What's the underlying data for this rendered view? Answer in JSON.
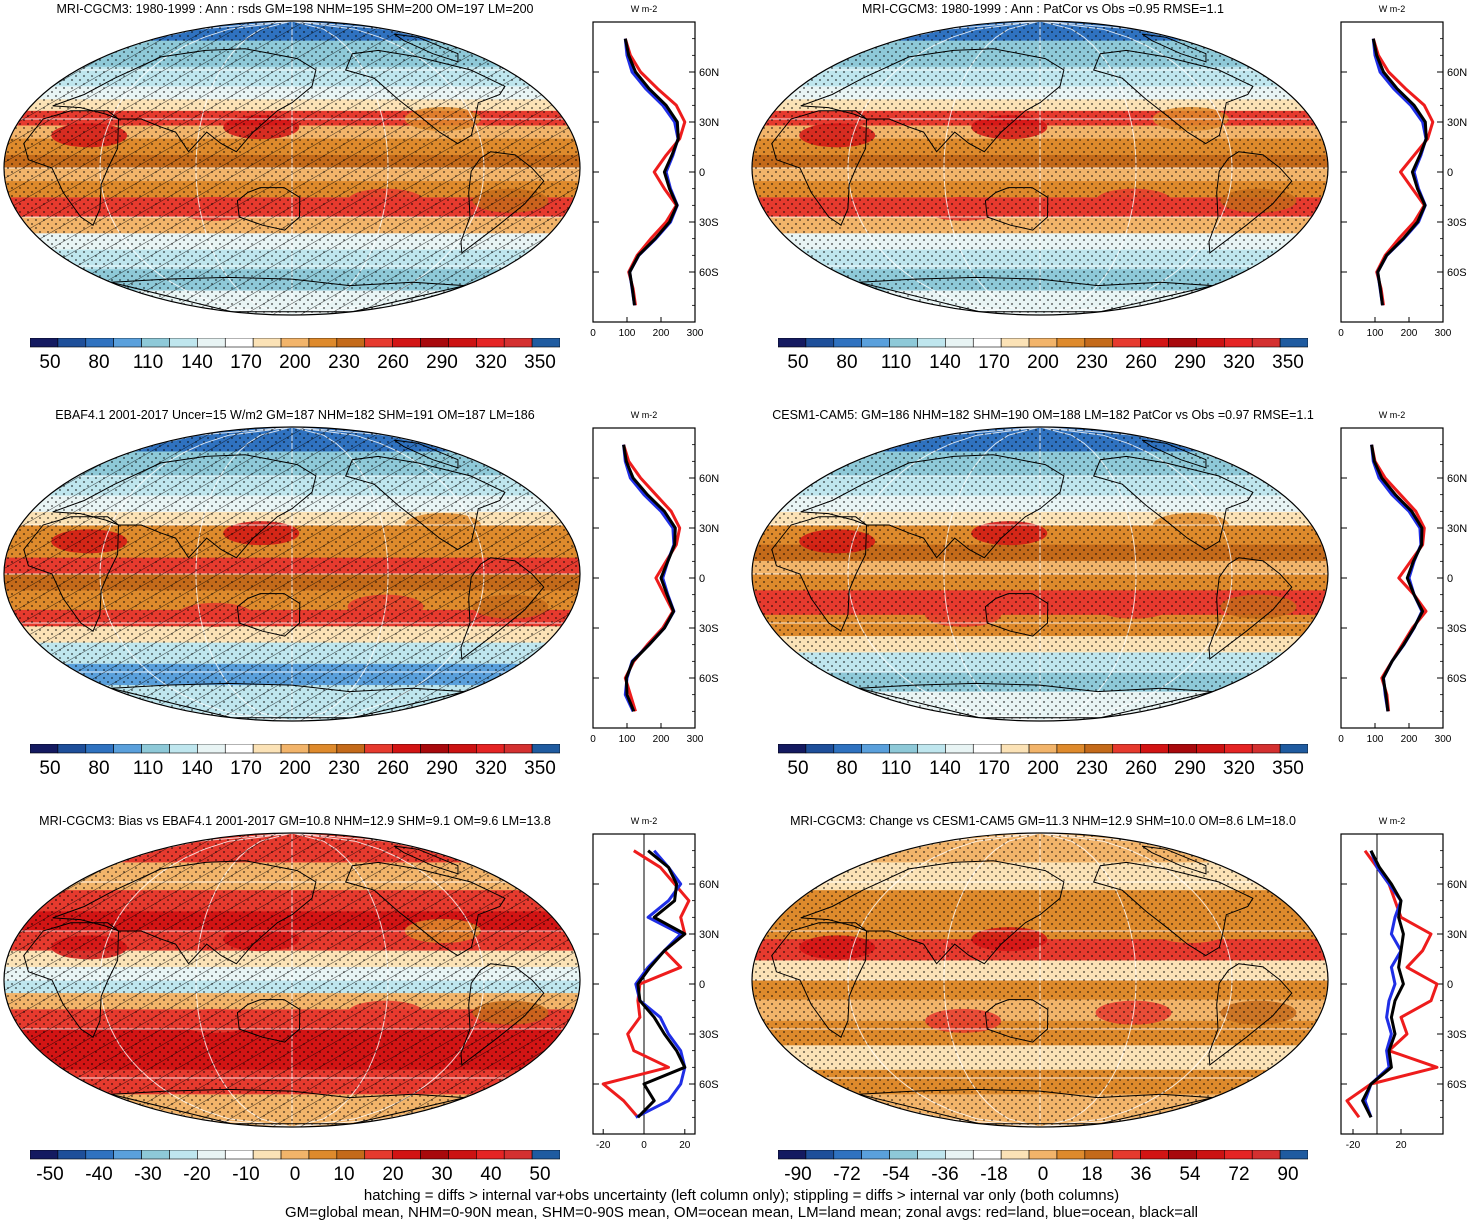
{
  "chart_data": [
    {
      "type": "heatmap",
      "title": "MRI-CGCM3: 1980-1999 : Ann : rsds GM=198 NHM=195 SHM=200 OM=197 LM=200",
      "colorbar": {
        "ticks": [
          "50",
          "80",
          "110",
          "140",
          "170",
          "200",
          "230",
          "260",
          "290",
          "320",
          "350"
        ],
        "palette": [
          "#141a60",
          "#1e4f9a",
          "#2f72c0",
          "#5aa0dc",
          "#8ec9d8",
          "#bfe6ee",
          "#e8f4f4",
          "#ffffff",
          "#fbe2b6",
          "#f2b46a",
          "#de8a2c",
          "#c46a1a",
          "#e63a2e",
          "#d21414",
          "#a8090c",
          "#cc1212",
          "#e52424",
          "#d43030",
          "#1f5ba0"
        ]
      },
      "field": {
        "kind": "rsds_mri",
        "hatching": true,
        "stippling": true
      },
      "zonal_profile": {
        "xlim": [
          0,
          300
        ],
        "xticks": [
          "0",
          "100",
          "200",
          "300"
        ],
        "unit": "W m-2",
        "ylabels": [
          "60N",
          "30N",
          "0",
          "30S",
          "60S"
        ],
        "lat": [
          -80,
          -70,
          -60,
          -50,
          -40,
          -30,
          -20,
          -10,
          0,
          10,
          20,
          30,
          40,
          50,
          60,
          70,
          80
        ],
        "series": [
          {
            "name": "land",
            "color": "#ee1c1c",
            "values": [
              125,
              118,
              105,
              130,
              170,
              215,
              245,
              210,
              180,
              215,
              255,
              270,
              245,
              190,
              140,
              110,
              95
            ]
          },
          {
            "name": "ocean",
            "color": "#1f2ee6",
            "values": [
              122,
              115,
              108,
              135,
              185,
              228,
              248,
              228,
              215,
              235,
              250,
              240,
              205,
              155,
              115,
              100,
              95
            ]
          },
          {
            "name": "all",
            "color": "#000000",
            "values": [
              122,
              116,
              108,
              134,
              183,
              225,
              247,
              225,
              210,
              232,
              251,
              248,
              215,
              165,
              125,
              105,
              95
            ]
          }
        ]
      }
    },
    {
      "type": "heatmap",
      "title": "MRI-CGCM3: 1980-1999 : Ann : PatCor vs Obs =0.95 RMSE=1.1",
      "colorbar": {
        "ticks": [
          "50",
          "80",
          "110",
          "140",
          "170",
          "200",
          "230",
          "260",
          "290",
          "320",
          "350"
        ],
        "palette": [
          "#141a60",
          "#1e4f9a",
          "#2f72c0",
          "#5aa0dc",
          "#8ec9d8",
          "#bfe6ee",
          "#e8f4f4",
          "#ffffff",
          "#fbe2b6",
          "#f2b46a",
          "#de8a2c",
          "#c46a1a",
          "#e63a2e",
          "#d21414",
          "#a8090c",
          "#cc1212",
          "#e52424",
          "#d43030",
          "#1f5ba0"
        ]
      },
      "field": {
        "kind": "rsds_mri",
        "hatching": false,
        "stippling": true
      },
      "zonal_profile": {
        "xlim": [
          0,
          300
        ],
        "xticks": [
          "0",
          "100",
          "200",
          "300"
        ],
        "unit": "W m-2",
        "ylabels": [
          "60N",
          "30N",
          "0",
          "30S",
          "60S"
        ],
        "lat": [
          -80,
          -70,
          -60,
          -50,
          -40,
          -30,
          -20,
          -10,
          0,
          10,
          20,
          30,
          40,
          50,
          60,
          70,
          80
        ],
        "series": [
          {
            "name": "land",
            "color": "#ee1c1c",
            "values": [
              125,
              118,
              105,
              130,
              170,
              215,
              245,
              210,
              175,
              215,
              255,
              270,
              245,
              190,
              140,
              110,
              95
            ]
          },
          {
            "name": "ocean",
            "color": "#1f2ee6",
            "values": [
              122,
              115,
              108,
              135,
              185,
              228,
              248,
              228,
              215,
              235,
              250,
              240,
              205,
              155,
              115,
              100,
              95
            ]
          },
          {
            "name": "all",
            "color": "#000000",
            "values": [
              122,
              116,
              108,
              134,
              183,
              225,
              247,
              225,
              210,
              232,
              251,
              248,
              215,
              165,
              125,
              105,
              95
            ]
          }
        ]
      }
    },
    {
      "type": "heatmap",
      "title": "EBAF4.1 2001-2017 Uncer=15 W/m2 GM=187 NHM=182 SHM=191 OM=187 LM=186",
      "colorbar": {
        "ticks": [
          "50",
          "80",
          "110",
          "140",
          "170",
          "200",
          "230",
          "260",
          "290",
          "320",
          "350"
        ],
        "palette": [
          "#141a60",
          "#1e4f9a",
          "#2f72c0",
          "#5aa0dc",
          "#8ec9d8",
          "#bfe6ee",
          "#e8f4f4",
          "#ffffff",
          "#fbe2b6",
          "#f2b46a",
          "#de8a2c",
          "#c46a1a",
          "#e63a2e",
          "#d21414",
          "#a8090c",
          "#cc1212",
          "#e52424",
          "#d43030",
          "#1f5ba0"
        ]
      },
      "field": {
        "kind": "rsds_obs",
        "hatching": true,
        "stippling": true
      },
      "zonal_profile": {
        "xlim": [
          0,
          300
        ],
        "xticks": [
          "0",
          "100",
          "200",
          "300"
        ],
        "unit": "W m-2",
        "ylabels": [
          "60N",
          "30N",
          "0",
          "30S",
          "60S"
        ],
        "lat": [
          -80,
          -70,
          -60,
          -50,
          -40,
          -30,
          -20,
          -10,
          0,
          10,
          20,
          30,
          40,
          50,
          60,
          70,
          80
        ],
        "series": [
          {
            "name": "land",
            "color": "#ee1c1c",
            "values": [
              125,
              110,
              95,
              120,
              160,
              205,
              235,
              210,
              185,
              215,
              245,
              255,
              230,
              185,
              140,
              105,
              90
            ]
          },
          {
            "name": "ocean",
            "color": "#1f2ee6",
            "values": [
              118,
              95,
              100,
              115,
              165,
              210,
              238,
              220,
              205,
              220,
              238,
              235,
              200,
              150,
              110,
              95,
              90
            ]
          },
          {
            "name": "all",
            "color": "#000000",
            "values": [
              120,
              100,
              98,
              117,
              165,
              210,
              237,
              218,
              200,
              220,
              240,
              242,
              210,
              160,
              118,
              98,
              90
            ]
          }
        ]
      }
    },
    {
      "type": "heatmap",
      "title": "CESM1-CAM5: GM=186 NHM=182 SHM=190 OM=188 LM=182 PatCor vs Obs =0.97 RMSE=1.1",
      "colorbar": {
        "ticks": [
          "50",
          "80",
          "110",
          "140",
          "170",
          "200",
          "230",
          "260",
          "290",
          "320",
          "350"
        ],
        "palette": [
          "#141a60",
          "#1e4f9a",
          "#2f72c0",
          "#5aa0dc",
          "#8ec9d8",
          "#bfe6ee",
          "#e8f4f4",
          "#ffffff",
          "#fbe2b6",
          "#f2b46a",
          "#de8a2c",
          "#c46a1a",
          "#e63a2e",
          "#d21414",
          "#a8090c",
          "#cc1212",
          "#e52424",
          "#d43030",
          "#1f5ba0"
        ]
      },
      "field": {
        "kind": "rsds_cesm",
        "hatching": false,
        "stippling": true
      },
      "zonal_profile": {
        "xlim": [
          0,
          300
        ],
        "xticks": [
          "0",
          "100",
          "200",
          "300"
        ],
        "unit": "W m-2",
        "ylabels": [
          "60N",
          "30N",
          "0",
          "30S",
          "60S"
        ],
        "lat": [
          -80,
          -70,
          -60,
          -50,
          -40,
          -30,
          -20,
          -10,
          0,
          10,
          20,
          30,
          40,
          50,
          60,
          70,
          80
        ],
        "series": [
          {
            "name": "land",
            "color": "#ee1c1c",
            "values": [
              140,
              135,
              120,
              150,
              180,
              210,
              250,
              215,
              170,
              205,
              240,
              245,
              220,
              175,
              130,
              100,
              90
            ]
          },
          {
            "name": "ocean",
            "color": "#1f2ee6",
            "values": [
              138,
              130,
              125,
              150,
              185,
              215,
              238,
              215,
              200,
              215,
              235,
              232,
              200,
              150,
              112,
              95,
              90
            ]
          },
          {
            "name": "all",
            "color": "#000000",
            "values": [
              138,
              132,
              124,
              150,
              184,
              214,
              240,
              215,
              195,
              213,
              237,
              238,
              208,
              160,
              120,
              98,
              90
            ]
          }
        ]
      }
    },
    {
      "type": "heatmap",
      "title": "MRI-CGCM3: Bias vs EBAF4.1 2001-2017 GM=10.8 NHM=12.9 SHM=9.1 OM=9.6 LM=13.8",
      "colorbar": {
        "ticks": [
          "-50",
          "-40",
          "-30",
          "-20",
          "-10",
          "0",
          "10",
          "20",
          "30",
          "40",
          "50"
        ],
        "palette": [
          "#141a60",
          "#1e4f9a",
          "#2f72c0",
          "#5aa0dc",
          "#8ec9d8",
          "#bfe6ee",
          "#e8f4f4",
          "#ffffff",
          "#fbe2b6",
          "#f2b46a",
          "#de8a2c",
          "#c46a1a",
          "#e63a2e",
          "#d21414",
          "#a8090c",
          "#cc1212",
          "#e52424",
          "#d43030",
          "#1f5ba0"
        ]
      },
      "field": {
        "kind": "bias",
        "hatching": true,
        "stippling": true
      },
      "zonal_profile": {
        "xlim": [
          -25,
          25
        ],
        "xticks": [
          "-20",
          "0",
          "20"
        ],
        "unit": "W m-2",
        "ylabels": [
          "60N",
          "30N",
          "0",
          "30S",
          "60S"
        ],
        "lat": [
          -80,
          -70,
          -60,
          -50,
          -40,
          -30,
          -20,
          -10,
          0,
          10,
          20,
          30,
          40,
          50,
          60,
          70,
          80
        ],
        "series": [
          {
            "name": "land",
            "color": "#ee1c1c",
            "values": [
              -3,
              -10,
              -20,
              12,
              -5,
              -8,
              -2,
              -3,
              -2,
              18,
              10,
              20,
              18,
              22,
              15,
              8,
              -5
            ]
          },
          {
            "name": "ocean",
            "color": "#1f2ee6",
            "values": [
              -4,
              12,
              18,
              20,
              18,
              12,
              8,
              -2,
              -4,
              2,
              10,
              18,
              2,
              12,
              18,
              12,
              5
            ]
          },
          {
            "name": "all",
            "color": "#000000",
            "values": [
              -3,
              5,
              0,
              20,
              16,
              10,
              5,
              -2,
              -3,
              3,
              10,
              20,
              5,
              15,
              16,
              12,
              2
            ]
          }
        ]
      }
    },
    {
      "type": "heatmap",
      "title": "MRI-CGCM3: Change vs CESM1-CAM5 GM=11.3 NHM=12.9 SHM=10.0 OM=8.6 LM=18.0",
      "colorbar": {
        "ticks": [
          "-90",
          "-72",
          "-54",
          "-36",
          "-18",
          "0",
          "18",
          "36",
          "54",
          "72",
          "90"
        ],
        "palette": [
          "#141a60",
          "#1e4f9a",
          "#2f72c0",
          "#5aa0dc",
          "#8ec9d8",
          "#bfe6ee",
          "#e8f4f4",
          "#ffffff",
          "#fbe2b6",
          "#f2b46a",
          "#de8a2c",
          "#c46a1a",
          "#e63a2e",
          "#d21414",
          "#a8090c",
          "#cc1212",
          "#e52424",
          "#d43030",
          "#1f5ba0"
        ]
      },
      "field": {
        "kind": "change",
        "hatching": false,
        "stippling": true
      },
      "zonal_profile": {
        "xlim": [
          -30,
          55
        ],
        "xticks": [
          "-20",
          "20"
        ],
        "unit": "W m-2",
        "ylabels": [
          "60N",
          "30N",
          "0",
          "30S",
          "60S"
        ],
        "lat": [
          -80,
          -70,
          -60,
          -50,
          -40,
          -30,
          -20,
          -10,
          0,
          10,
          20,
          30,
          40,
          50,
          60,
          70,
          80
        ],
        "series": [
          {
            "name": "land",
            "color": "#ee1c1c",
            "values": [
              -15,
              -25,
              -5,
              50,
              10,
              25,
              20,
              45,
              50,
              25,
              38,
              45,
              20,
              15,
              10,
              0,
              -10
            ]
          },
          {
            "name": "ocean",
            "color": "#1f2ee6",
            "values": [
              -5,
              -10,
              -5,
              10,
              8,
              12,
              8,
              10,
              15,
              12,
              20,
              12,
              15,
              20,
              10,
              0,
              -5
            ]
          },
          {
            "name": "all",
            "color": "#000000",
            "values": [
              -5,
              -12,
              -5,
              12,
              10,
              15,
              12,
              15,
              22,
              18,
              20,
              22,
              18,
              20,
              12,
              2,
              -5
            ]
          }
        ]
      }
    }
  ],
  "footer": {
    "line1": "hatching = diffs > internal var+obs uncertainty (left column only); stippling = diffs > internal var only (both columns)",
    "line2": "GM=global mean, NHM=0-90N mean, SHM=0-90S mean, OM=ocean mean, LM=land mean; zonal avgs: red=land, blue=ocean, black=all"
  }
}
